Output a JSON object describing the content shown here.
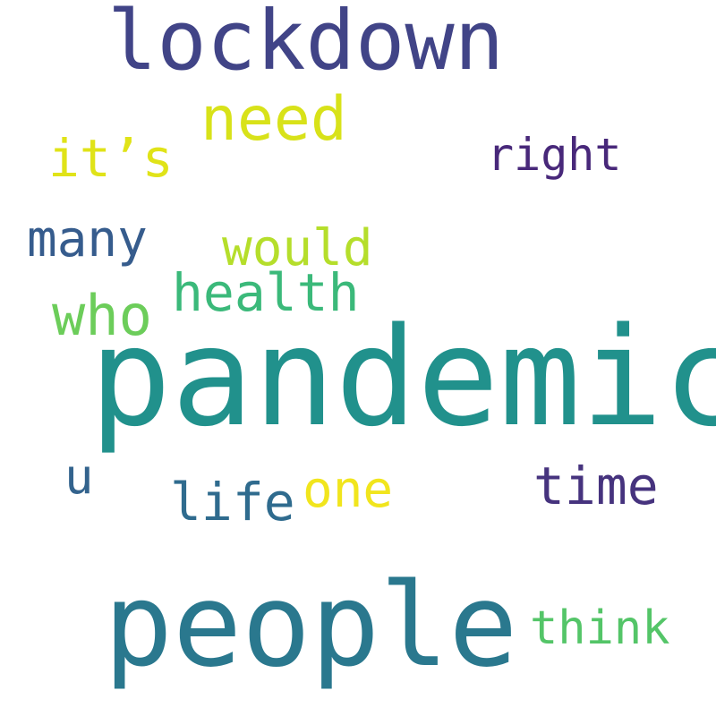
{
  "words": [
    {
      "text": "pandemic",
      "color": "#21918c"
    },
    {
      "text": "people",
      "color": "#2a788e"
    },
    {
      "text": "lockdown",
      "color": "#414487"
    },
    {
      "text": "need",
      "color": "#d8e219"
    },
    {
      "text": "it’s",
      "color": "#e0e318"
    },
    {
      "text": "right",
      "color": "#48287a"
    },
    {
      "text": "many",
      "color": "#365c8d"
    },
    {
      "text": "would",
      "color": "#b5de2b"
    },
    {
      "text": "health",
      "color": "#3bb97a"
    },
    {
      "text": "who",
      "color": "#6ccd5a"
    },
    {
      "text": "u",
      "color": "#33638d"
    },
    {
      "text": "life",
      "color": "#2f6b8e"
    },
    {
      "text": "one",
      "color": "#f1e51d"
    },
    {
      "text": "time",
      "color": "#46337e"
    },
    {
      "text": "think",
      "color": "#54c568"
    }
  ]
}
